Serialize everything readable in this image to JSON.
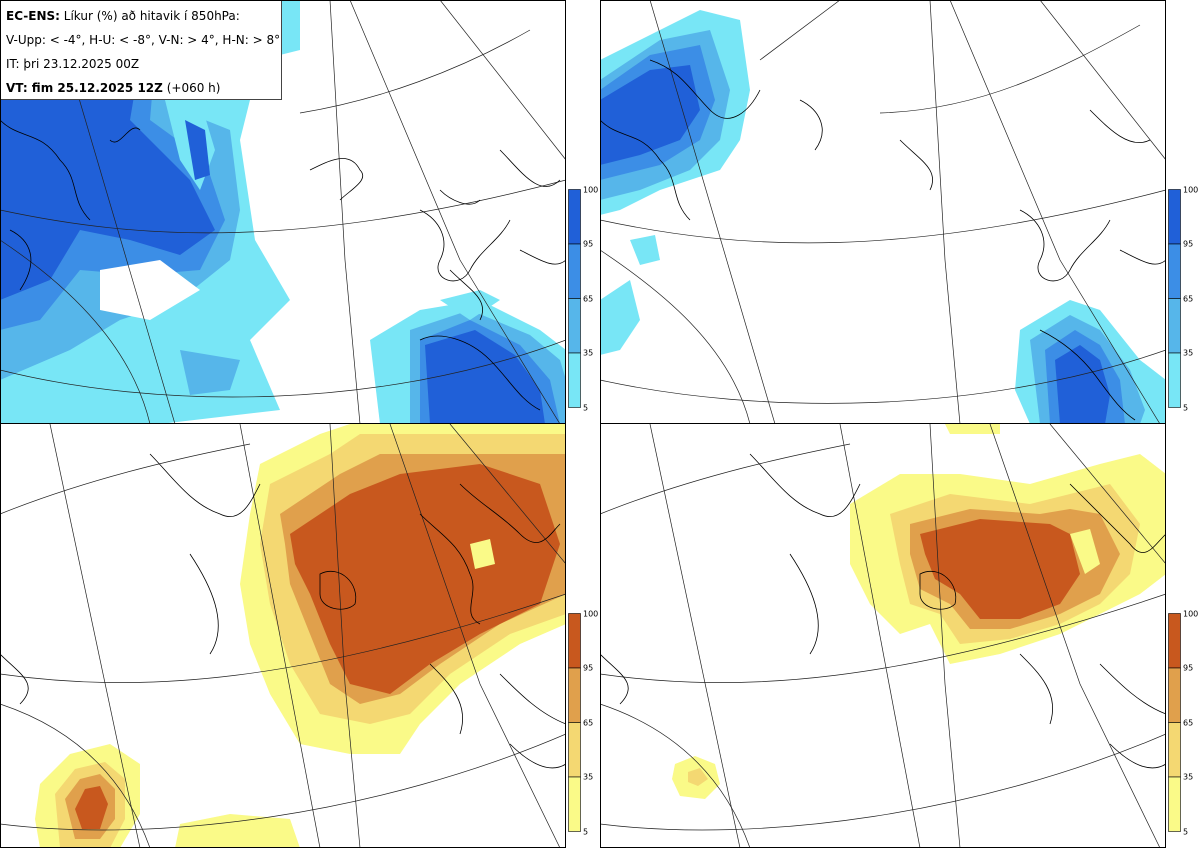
{
  "title_box": {
    "line1_bold": "EC-ENS:",
    "line1_rest": "Líkur (%) að hitavik í 850hPa:",
    "line2": "V-Upp: < -4°, H-U: < -8°, V-N: > 4°, H-N: > 8°",
    "line3": "IT: þri 23.12.2025 00Z",
    "line4_bold": "VT: fim 25.12.2025 12Z",
    "line4_rest": "(+060 h)"
  },
  "colorbars": {
    "cold": {
      "ticks": [
        "100",
        "95",
        "65",
        "35",
        "5"
      ],
      "colors": [
        "#2060d8",
        "#3c8ee6",
        "#56b6ea",
        "#78e6f6"
      ]
    },
    "warm": {
      "ticks": [
        "100",
        "95",
        "65",
        "35",
        "5"
      ],
      "colors": [
        "#c8581e",
        "#e0a04c",
        "#f4d872",
        "#fafa88"
      ]
    }
  },
  "panels": [
    {
      "name": "top-left",
      "variable": "V-Upp"
    },
    {
      "name": "top-right",
      "variable": "H-U"
    },
    {
      "name": "bottom-left",
      "variable": "V-N"
    },
    {
      "name": "bottom-right",
      "variable": "H-N"
    }
  ]
}
